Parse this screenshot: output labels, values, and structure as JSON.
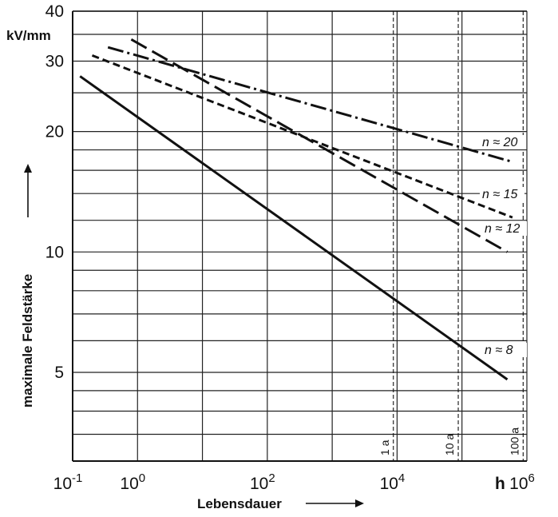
{
  "chart_data": {
    "type": "line",
    "x_scale": "log",
    "y_scale": "log",
    "xlim": [
      0.1,
      1000000
    ],
    "ylim": [
      3.0,
      40
    ],
    "ylabel": "maximale  Feldstärke",
    "xlabel": "Lebensdauer",
    "y_unit": "kV/mm",
    "x_unit": "h",
    "x_ticks": [
      {
        "value": 0.1,
        "base": "10",
        "exp": "-1"
      },
      {
        "value": 1,
        "base": "10",
        "exp": "0"
      },
      {
        "value": 100,
        "base": "10",
        "exp": "2"
      },
      {
        "value": 10000,
        "base": "10",
        "exp": "4"
      },
      {
        "value": 1000000,
        "base": "10",
        "exp": "6"
      }
    ],
    "y_ticks": [
      {
        "value": 5,
        "label": "5"
      },
      {
        "value": 10,
        "label": "10"
      },
      {
        "value": 20,
        "label": "20"
      },
      {
        "value": 30,
        "label": "30"
      },
      {
        "value": 40,
        "label": "40"
      }
    ],
    "grid": true,
    "y_gridlines": [
      3.5,
      4,
      4.5,
      5,
      6,
      7,
      8,
      9,
      10,
      12,
      14,
      16,
      18,
      20,
      25,
      30,
      35,
      40
    ],
    "x_gridlines": [
      0.1,
      1,
      10,
      100,
      1000,
      10000,
      100000,
      1000000
    ],
    "reference_lines": [
      {
        "x": 8760,
        "label": "1 a"
      },
      {
        "x": 87600,
        "label": "10 a"
      },
      {
        "x": 876000,
        "label": "100 a"
      }
    ],
    "series": [
      {
        "name": "n ≈ 8",
        "style": "solid",
        "x_start": 0.13,
        "x_end": 500000,
        "y_start": 27.5,
        "y_end": 4.8
      },
      {
        "name": "n ≈ 12",
        "style": "long-dash",
        "x_start": 0.8,
        "x_end": 500000,
        "y_start": 34,
        "y_end": 10
      },
      {
        "name": "n ≈ 15",
        "style": "short-dash",
        "x_start": 0.2,
        "x_end": 600000,
        "y_start": 31,
        "y_end": 12.2
      },
      {
        "name": "n ≈ 20",
        "style": "dash-dot",
        "x_start": 0.35,
        "x_end": 600000,
        "y_start": 32.5,
        "y_end": 16.8
      }
    ]
  }
}
